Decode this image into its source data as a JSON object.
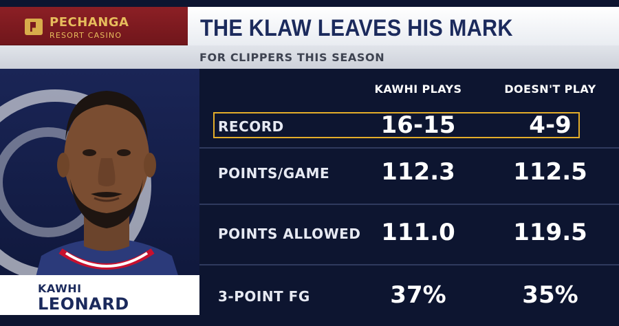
{
  "sponsor": {
    "name": "PECHANGA",
    "subname": "RESORT CASINO"
  },
  "header": {
    "title": "THE KLAW LEAVES HIS MARK",
    "subtitle": "FOR CLIPPERS THIS SEASON"
  },
  "player": {
    "first_name": "KAWHI",
    "last_name": "LEONARD"
  },
  "columns": [
    "KAWHI PLAYS",
    "DOESN'T PLAY"
  ],
  "rows": [
    {
      "label": "RECORD",
      "plays": "16-15",
      "doesnt_play": "4-9",
      "highlighted": true
    },
    {
      "label": "POINTS/GAME",
      "plays": "112.3",
      "doesnt_play": "112.5"
    },
    {
      "label": "POINTS ALLOWED",
      "plays": "111.0",
      "doesnt_play": "119.5"
    },
    {
      "label": "3-POINT FG",
      "plays": "37%",
      "doesnt_play": "35%"
    }
  ],
  "colors": {
    "navy": "#0d1530",
    "title_blue": "#1b2a5c",
    "sponsor_red": "#8c1f25",
    "gold": "#e4ad2a"
  }
}
